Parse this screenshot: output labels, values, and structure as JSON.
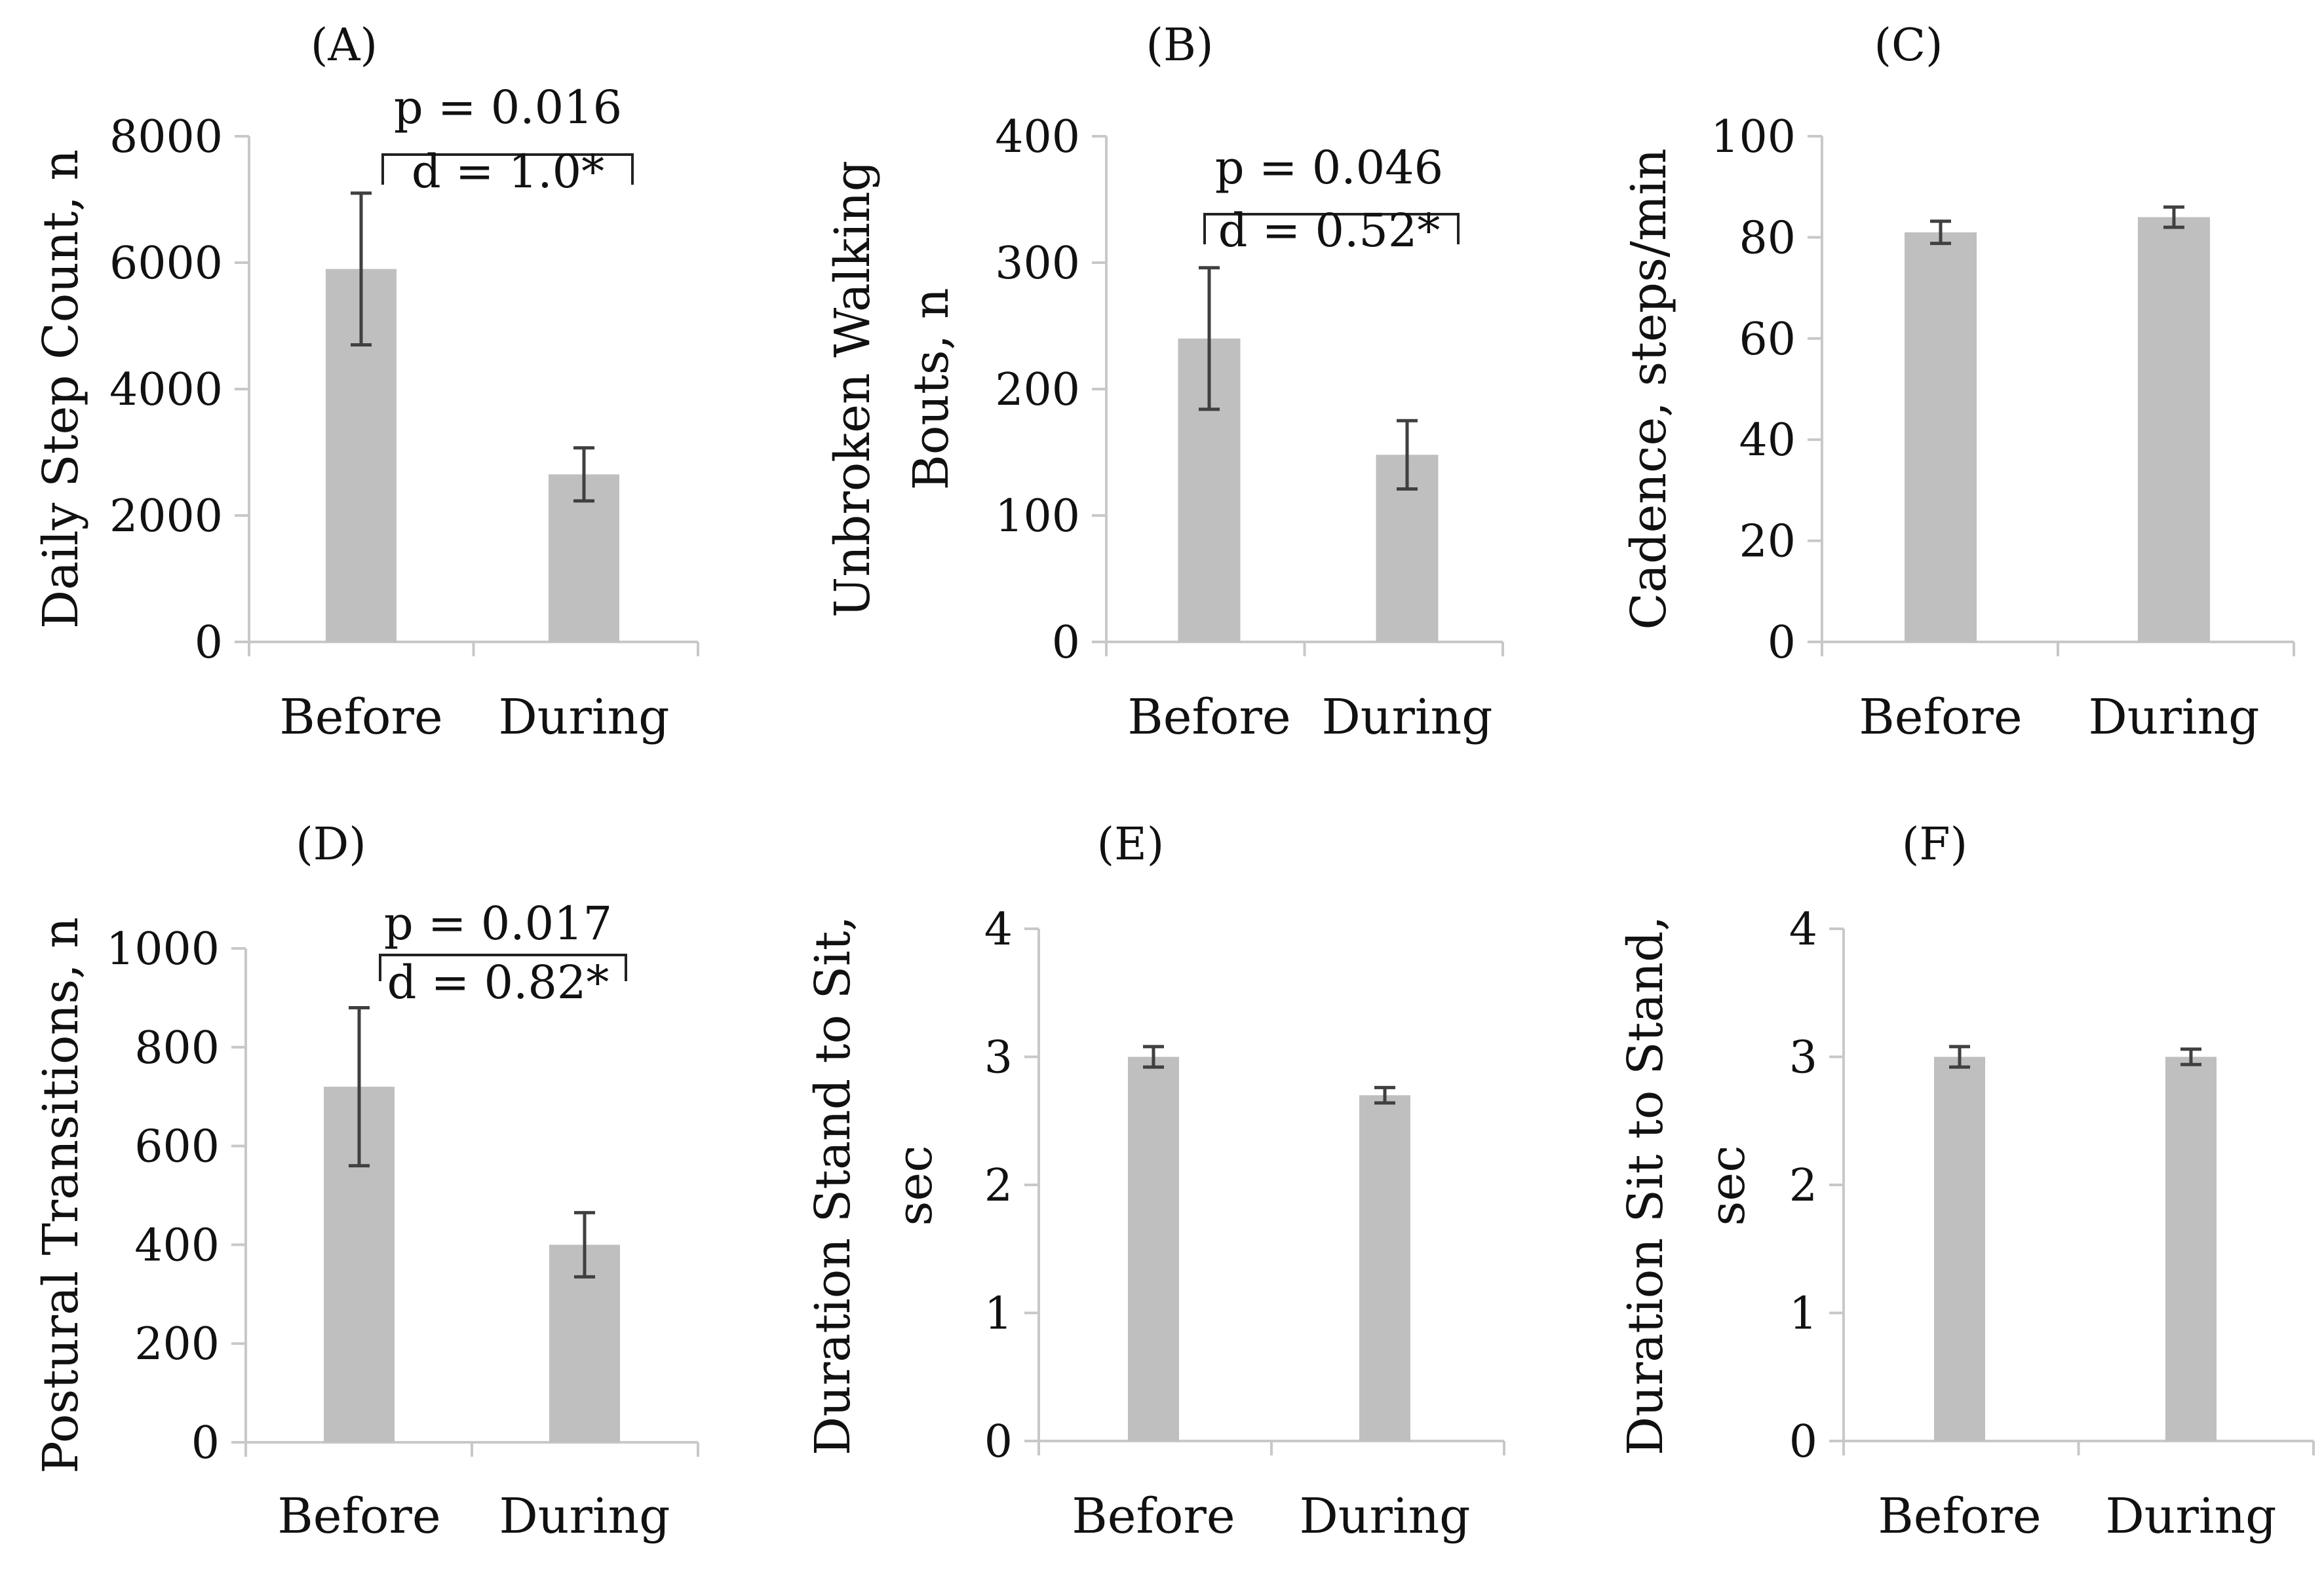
{
  "chart_data": [
    {
      "panel": "(A)",
      "type": "bar",
      "categories": [
        "Before",
        "During"
      ],
      "values": [
        5900,
        2650
      ],
      "errors": [
        1200,
        420
      ],
      "ylabel": [
        "Daily Step Count, n"
      ],
      "ylim": [
        0,
        8000
      ],
      "yticks": [
        0,
        2000,
        4000,
        6000,
        8000
      ],
      "annotation": {
        "p": "p = 0.016",
        "d": "d = 1.0*"
      }
    },
    {
      "panel": "(B)",
      "type": "bar",
      "categories": [
        "Before",
        "During"
      ],
      "values": [
        240,
        148
      ],
      "errors": [
        56,
        27
      ],
      "ylabel": [
        "Unbroken Walking",
        "Bouts, n"
      ],
      "ylim": [
        0,
        400
      ],
      "yticks": [
        0,
        100,
        200,
        300,
        400
      ],
      "annotation": {
        "p": "p = 0.046",
        "d": "d = 0.52*"
      }
    },
    {
      "panel": "(C)",
      "type": "bar",
      "categories": [
        "Before",
        "During"
      ],
      "values": [
        81,
        84
      ],
      "errors": [
        2.2,
        2.0
      ],
      "ylabel": [
        "Cadence, steps/min"
      ],
      "ylim": [
        0,
        100
      ],
      "yticks": [
        0,
        20,
        40,
        60,
        80,
        100
      ]
    },
    {
      "panel": "(D)",
      "type": "bar",
      "categories": [
        "Before",
        "During"
      ],
      "values": [
        720,
        400
      ],
      "errors": [
        160,
        65
      ],
      "ylabel": [
        "Postural Transitions, n"
      ],
      "ylim": [
        0,
        1000
      ],
      "yticks": [
        0,
        200,
        400,
        600,
        800,
        1000
      ],
      "annotation": {
        "p": "p = 0.017",
        "d": "d = 0.82*"
      }
    },
    {
      "panel": "(E)",
      "type": "bar",
      "categories": [
        "Before",
        "During"
      ],
      "values": [
        3.0,
        2.7
      ],
      "errors": [
        0.08,
        0.06
      ],
      "ylabel": [
        "Duration Stand to Sit,",
        "sec"
      ],
      "ylim": [
        0,
        4
      ],
      "yticks": [
        0,
        1,
        2,
        3,
        4
      ]
    },
    {
      "panel": "(F)",
      "type": "bar",
      "categories": [
        "Before",
        "During"
      ],
      "values": [
        3.0,
        3.0
      ],
      "errors": [
        0.08,
        0.06
      ],
      "ylabel": [
        "Duration Sit to Stand,",
        "sec"
      ],
      "ylim": [
        0,
        4
      ],
      "yticks": [
        0,
        1,
        2,
        3,
        4
      ]
    }
  ],
  "colors": {
    "bar": "#bfbfbf",
    "axis": "#c8c8c8",
    "error": "#404040",
    "bracket": "#222222"
  }
}
